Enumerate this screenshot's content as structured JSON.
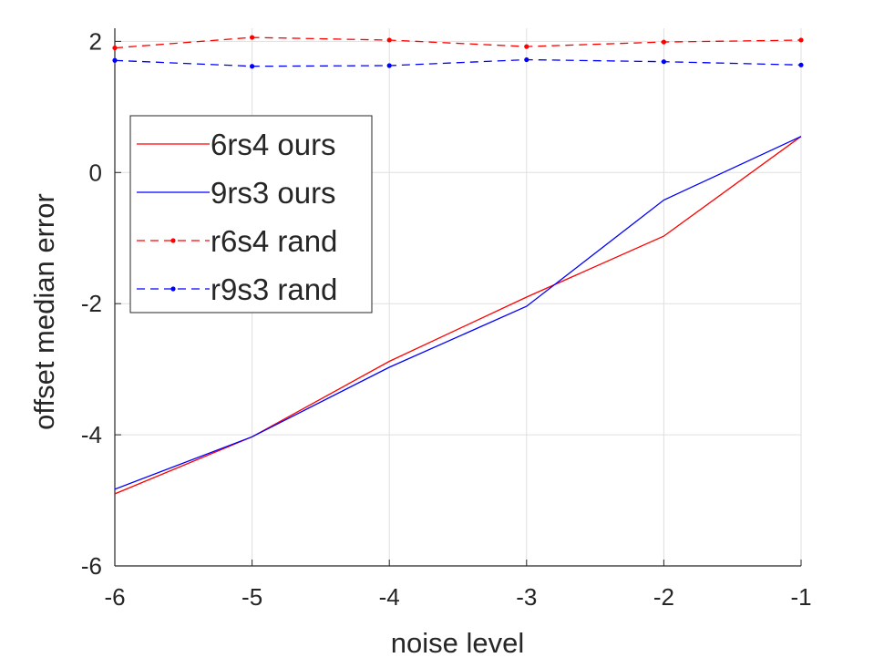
{
  "chart_data": {
    "type": "line",
    "xlabel": "noise level",
    "ylabel": "offset median error",
    "xlim": [
      -6,
      -1
    ],
    "ylim": [
      -6,
      2.2
    ],
    "xticks": [
      -6,
      -5,
      -4,
      -3,
      -2,
      -1
    ],
    "yticks": [
      -6,
      -4,
      -2,
      0,
      2
    ],
    "xtick_labels": [
      "-6",
      "-5",
      "-4",
      "-3",
      "-2",
      "-1"
    ],
    "ytick_labels": [
      "-6",
      "-4",
      "-2",
      "0",
      "2"
    ],
    "grid": true,
    "legend_position": "top-left",
    "x": [
      -6,
      -5,
      -4,
      -3,
      -2,
      -1
    ],
    "series": [
      {
        "name": "6rs4 ours",
        "color": "#ff0000",
        "style": "solid",
        "markers": false,
        "values": [
          -4.9,
          -4.03,
          -2.88,
          -1.9,
          -0.97,
          0.55
        ]
      },
      {
        "name": "9rs3 ours",
        "color": "#0000ff",
        "style": "solid",
        "markers": false,
        "values": [
          -4.83,
          -4.03,
          -2.97,
          -2.04,
          -0.42,
          0.55
        ]
      },
      {
        "name": "r6s4 rand",
        "color": "#ff0000",
        "style": "dashed",
        "markers": true,
        "values": [
          1.9,
          2.06,
          2.02,
          1.92,
          1.99,
          2.02
        ]
      },
      {
        "name": "r9s3 rand",
        "color": "#0000ff",
        "style": "dashed",
        "markers": true,
        "values": [
          1.71,
          1.62,
          1.63,
          1.72,
          1.69,
          1.64
        ]
      }
    ]
  }
}
